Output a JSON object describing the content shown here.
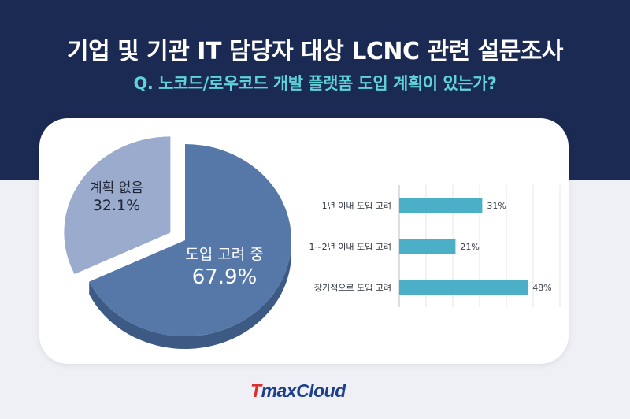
{
  "header": {
    "title": "기업 및 기관 IT 담당자 대상 LCNC 관련 설문조사",
    "subtitle": "Q. 노코드/로우코드 개발 플랫폼 도입 계획이 있는가?"
  },
  "chart_data": [
    {
      "type": "pie",
      "labels": [
        "도입 고려 중",
        "계획 없음"
      ],
      "values": [
        67.9,
        32.1
      ],
      "value_labels": [
        "67.9%",
        "32.1%"
      ],
      "colors": [
        "#5678a8",
        "#9aabcd"
      ]
    },
    {
      "type": "bar",
      "orientation": "horizontal",
      "categories": [
        "1년 이내 도입 고려",
        "1~2년 이내 도입 고려",
        "장기적으로 도입 고려"
      ],
      "values": [
        31,
        21,
        48
      ],
      "value_labels": [
        "31%",
        "21%",
        "48%"
      ],
      "xlim": [
        0,
        60
      ],
      "grid": true,
      "color": "#4bafc8"
    }
  ],
  "logo": {
    "prefix": "T",
    "rest": "maxCloud"
  }
}
